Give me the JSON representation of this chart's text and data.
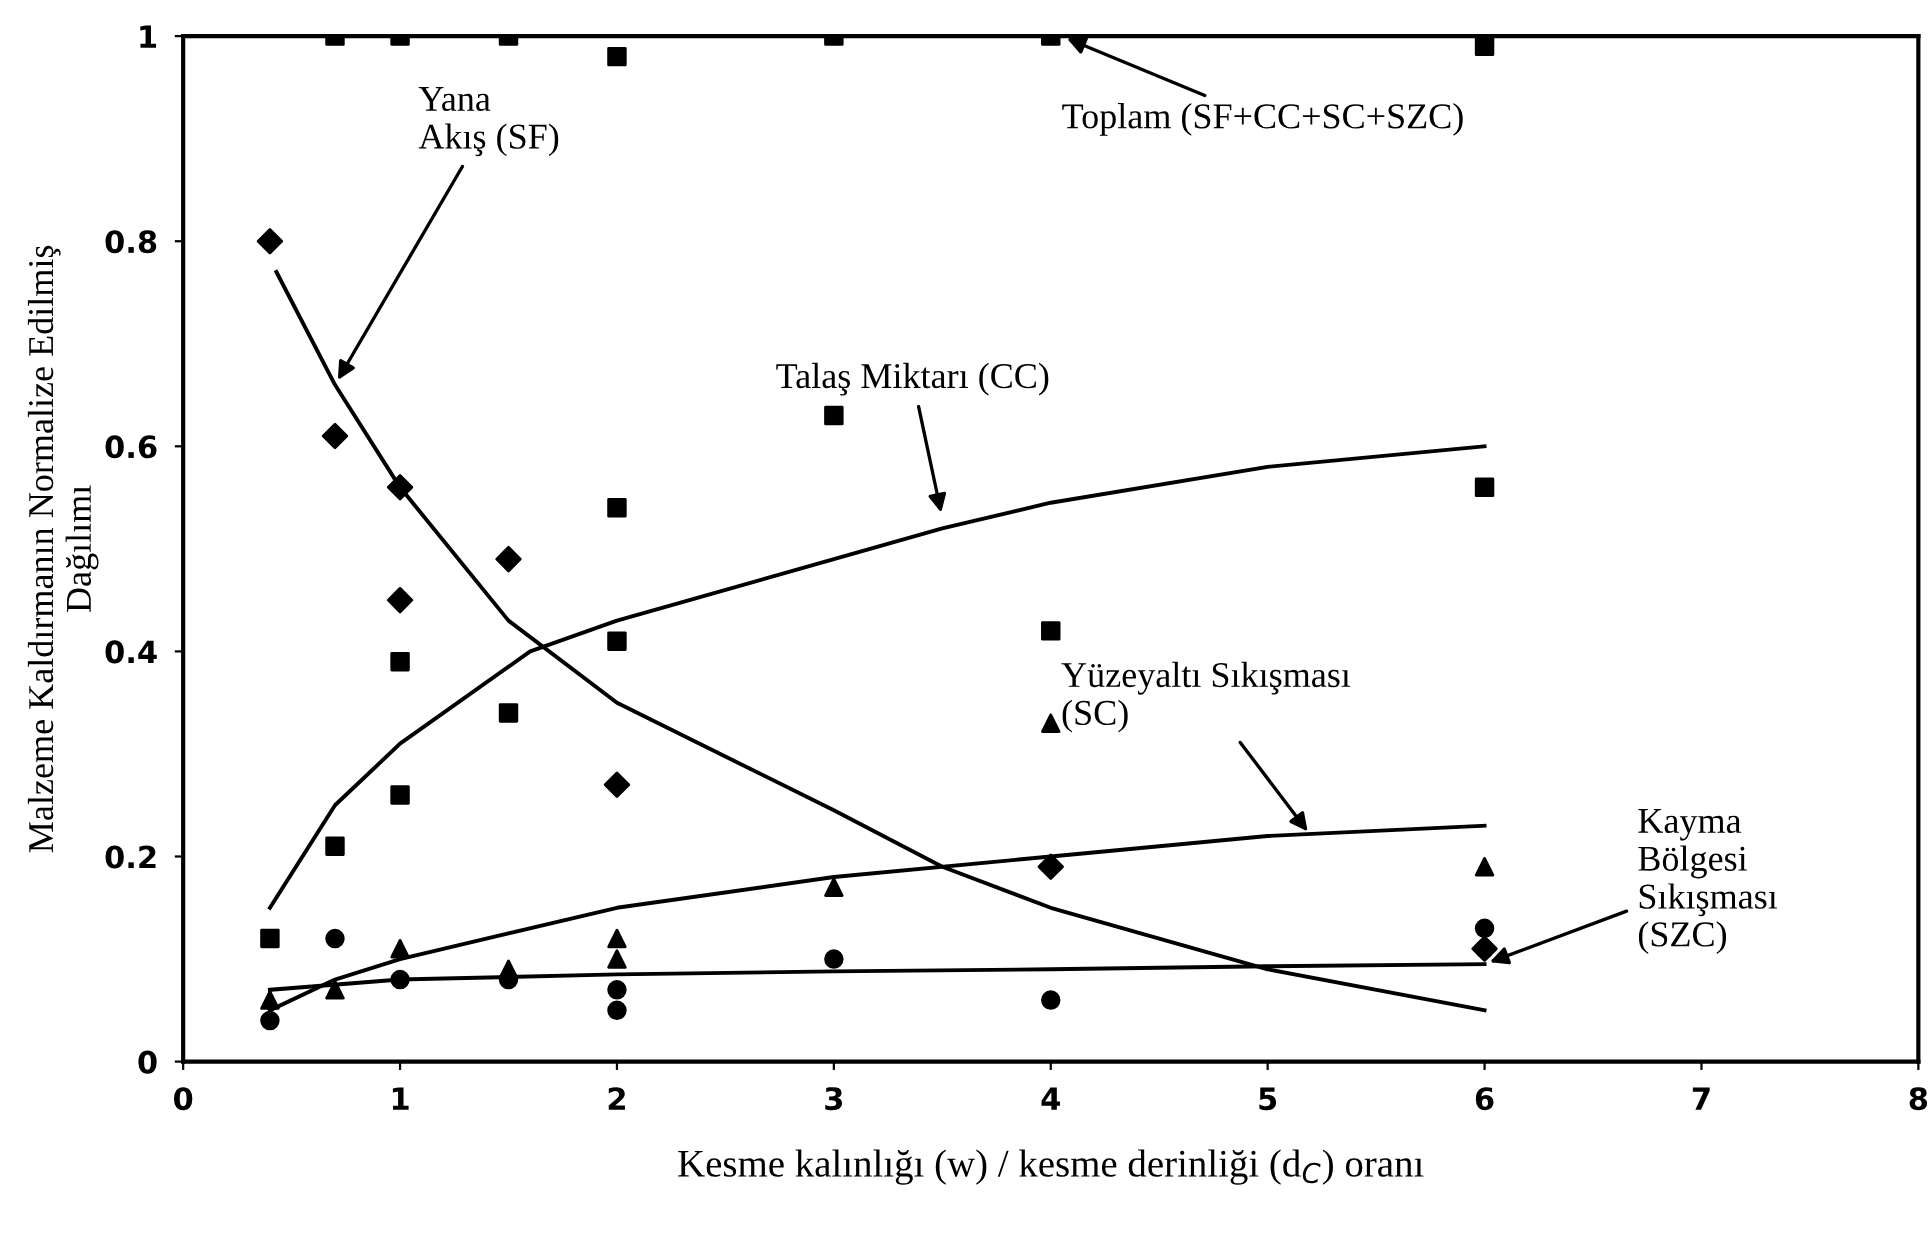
{
  "chart_data": {
    "type": "scatter",
    "xlabel": "Kesme kalınlığı (w) / kesme derinliği (d$_{C}$) oranı",
    "ylabel": "Malzeme Kaldırmanın Normalize Edilmiş\nDağılımı",
    "xlim": [
      0,
      8
    ],
    "xticks": [
      0,
      1,
      2,
      3,
      4,
      5,
      6,
      7,
      8
    ],
    "ylim": [
      0,
      1
    ],
    "yticks": [
      0,
      0.2,
      0.4,
      0.6,
      0.8,
      1
    ],
    "grid": false,
    "legend": false,
    "series": [
      {
        "marker": "diamond",
        "color": "#000000",
        "x": [
          0.4,
          0.7,
          1,
          1,
          1.5,
          2,
          4,
          6
        ],
        "values": [
          0.8,
          0.61,
          0.56,
          0.45,
          0.49,
          0.27,
          0.19,
          0.11
        ]
      },
      {
        "marker": "square",
        "color": "#000000",
        "x": [
          0.4,
          0.7,
          1,
          1,
          1.5,
          2,
          2,
          3,
          4,
          6
        ],
        "values": [
          0.12,
          0.21,
          0.26,
          0.39,
          0.34,
          0.41,
          0.54,
          0.63,
          0.42,
          0.56
        ]
      },
      {
        "marker": "square",
        "color": "#000000",
        "x": [
          0.7,
          1,
          1.5,
          2,
          3,
          4,
          6
        ],
        "values": [
          1,
          1,
          1,
          0.98,
          1,
          1,
          0.99
        ]
      },
      {
        "marker": "triangle",
        "color": "#000000",
        "x": [
          0.4,
          0.7,
          1,
          1.5,
          2,
          2,
          3,
          4,
          6
        ],
        "values": [
          0.06,
          0.07,
          0.11,
          0.09,
          0.12,
          0.1,
          0.17,
          0.33,
          0.19
        ]
      },
      {
        "marker": "circle",
        "color": "#000000",
        "x": [
          0.4,
          0.7,
          1,
          1.5,
          2,
          2,
          3,
          4,
          6,
          6
        ],
        "values": [
          0.04,
          0.12,
          0.08,
          0.08,
          0.05,
          0.07,
          0.1,
          0.06,
          0.13,
          0.11
        ]
      },
      {
        "type": "line",
        "marker": "none",
        "color": "#000000",
        "x": [
          0.43,
          0.7,
          1,
          1.5,
          2,
          3,
          3.5,
          4,
          5,
          6
        ],
        "values": [
          0.77,
          0.66,
          0.56,
          0.43,
          0.35,
          0.245,
          0.19,
          0.15,
          0.09,
          0.05
        ]
      },
      {
        "type": "line",
        "marker": "none",
        "color": "#000000",
        "x": [
          0.4,
          0.7,
          1,
          1.6,
          2,
          3,
          3.5,
          4,
          5,
          6
        ],
        "values": [
          0.15,
          0.25,
          0.31,
          0.4,
          0.43,
          0.49,
          0.52,
          0.545,
          0.58,
          0.6
        ]
      },
      {
        "type": "line",
        "marker": "none",
        "color": "#000000",
        "x": [
          0.4,
          0.7,
          1,
          2,
          3,
          4,
          5,
          6
        ],
        "values": [
          0.05,
          0.08,
          0.1,
          0.15,
          0.18,
          0.2,
          0.22,
          0.23
        ]
      },
      {
        "type": "line",
        "marker": "none",
        "color": "#000000",
        "x": [
          0.4,
          1,
          2,
          3,
          4,
          5,
          6
        ],
        "values": [
          0.07,
          0.08,
          0.085,
          0.088,
          0.09,
          0.093,
          0.095
        ]
      }
    ],
    "annotations": [
      {
        "text": "Yana\nAkış (SF)",
        "x": 0.7,
        "y": 0.66
      },
      {
        "text": "Talaş Miktarı (CC)",
        "x": 3.5,
        "y": 0.53
      },
      {
        "text": "Toplam (SF+CC+SC+SZC)",
        "x": 4.05,
        "y": 1
      },
      {
        "text": "Yüzeyaltı Sıkışması\n(SC)",
        "x": 5.2,
        "y": 0.22
      },
      {
        "text": "Kayma\nBölgesi\nSıkışması\n(SZC)",
        "x": 6,
        "y": 0.095
      }
    ]
  }
}
